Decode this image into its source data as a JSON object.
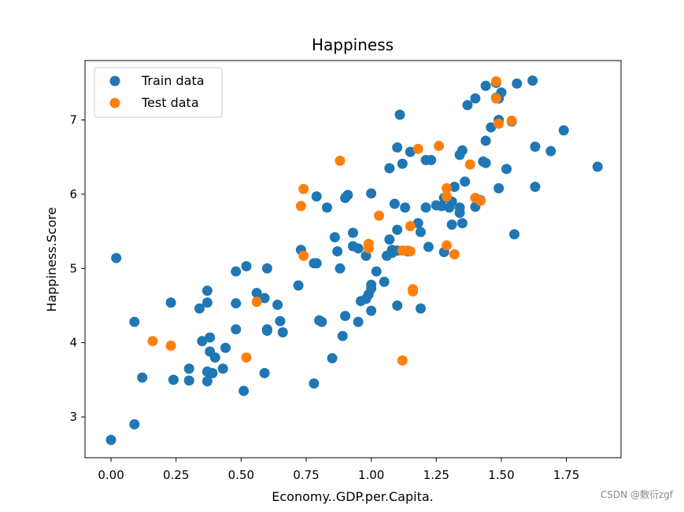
{
  "chart_data": {
    "type": "scatter",
    "title": "Happiness",
    "xlabel": "Economy..GDP.per.Capita.",
    "ylabel": "Happiness.Score",
    "xlim": [
      -0.1,
      1.96
    ],
    "ylim": [
      2.45,
      7.8
    ],
    "xticks": [
      0.0,
      0.25,
      0.5,
      0.75,
      1.0,
      1.25,
      1.5,
      1.75
    ],
    "xtick_labels": [
      "0.00",
      "0.25",
      "0.50",
      "0.75",
      "1.00",
      "1.25",
      "1.50",
      "1.75"
    ],
    "yticks": [
      3,
      4,
      5,
      6,
      7
    ],
    "ytick_labels": [
      "3",
      "4",
      "5",
      "6",
      "7"
    ],
    "grid": false,
    "legend_position": "top-left",
    "series": [
      {
        "name": "Train data",
        "color": "#1f77b4",
        "points": [
          [
            0.0,
            2.69
          ],
          [
            0.02,
            5.14
          ],
          [
            0.09,
            2.9
          ],
          [
            0.09,
            4.28
          ],
          [
            0.12,
            3.53
          ],
          [
            0.23,
            4.54
          ],
          [
            0.24,
            3.5
          ],
          [
            0.3,
            3.65
          ],
          [
            0.3,
            3.49
          ],
          [
            0.34,
            4.46
          ],
          [
            0.35,
            4.02
          ],
          [
            0.37,
            4.7
          ],
          [
            0.37,
            4.54
          ],
          [
            0.37,
            3.61
          ],
          [
            0.37,
            3.48
          ],
          [
            0.38,
            3.88
          ],
          [
            0.38,
            4.07
          ],
          [
            0.39,
            3.59
          ],
          [
            0.4,
            3.8
          ],
          [
            0.43,
            3.65
          ],
          [
            0.44,
            3.93
          ],
          [
            0.48,
            4.96
          ],
          [
            0.48,
            4.53
          ],
          [
            0.48,
            4.18
          ],
          [
            0.51,
            3.35
          ],
          [
            0.52,
            5.03
          ],
          [
            0.56,
            4.67
          ],
          [
            0.59,
            4.6
          ],
          [
            0.59,
            3.59
          ],
          [
            0.6,
            5.0
          ],
          [
            0.6,
            4.18
          ],
          [
            0.6,
            4.16
          ],
          [
            0.64,
            4.51
          ],
          [
            0.65,
            4.29
          ],
          [
            0.66,
            4.14
          ],
          [
            0.72,
            4.77
          ],
          [
            0.73,
            5.25
          ],
          [
            0.78,
            3.45
          ],
          [
            0.78,
            5.07
          ],
          [
            0.79,
            5.97
          ],
          [
            0.79,
            5.07
          ],
          [
            0.8,
            4.3
          ],
          [
            0.81,
            4.28
          ],
          [
            0.83,
            5.82
          ],
          [
            0.85,
            3.79
          ],
          [
            0.86,
            5.42
          ],
          [
            0.87,
            5.23
          ],
          [
            0.88,
            5.0
          ],
          [
            0.89,
            4.09
          ],
          [
            0.9,
            4.36
          ],
          [
            0.9,
            5.95
          ],
          [
            0.91,
            5.99
          ],
          [
            0.93,
            5.3
          ],
          [
            0.93,
            5.48
          ],
          [
            0.95,
            5.27
          ],
          [
            0.95,
            4.28
          ],
          [
            0.96,
            4.56
          ],
          [
            0.98,
            4.59
          ],
          [
            0.98,
            5.17
          ],
          [
            0.99,
            4.65
          ],
          [
            1.0,
            4.73
          ],
          [
            1.0,
            4.78
          ],
          [
            1.0,
            4.43
          ],
          [
            1.0,
            6.01
          ],
          [
            1.02,
            4.96
          ],
          [
            1.05,
            4.82
          ],
          [
            1.06,
            5.17
          ],
          [
            1.07,
            5.39
          ],
          [
            1.07,
            6.35
          ],
          [
            1.08,
            5.21
          ],
          [
            1.08,
            5.25
          ],
          [
            1.09,
            5.87
          ],
          [
            1.1,
            4.5
          ],
          [
            1.1,
            5.52
          ],
          [
            1.1,
            5.24
          ],
          [
            1.1,
            6.63
          ],
          [
            1.11,
            7.07
          ],
          [
            1.12,
            6.41
          ],
          [
            1.13,
            5.82
          ],
          [
            1.14,
            5.23
          ],
          [
            1.15,
            6.57
          ],
          [
            1.18,
            5.61
          ],
          [
            1.19,
            5.49
          ],
          [
            1.19,
            4.46
          ],
          [
            1.21,
            6.46
          ],
          [
            1.21,
            5.82
          ],
          [
            1.22,
            5.29
          ],
          [
            1.23,
            6.46
          ],
          [
            1.25,
            5.85
          ],
          [
            1.27,
            5.84
          ],
          [
            1.28,
            5.95
          ],
          [
            1.28,
            5.22
          ],
          [
            1.3,
            5.82
          ],
          [
            1.31,
            5.59
          ],
          [
            1.31,
            5.9
          ],
          [
            1.32,
            6.1
          ],
          [
            1.34,
            6.53
          ],
          [
            1.34,
            5.75
          ],
          [
            1.34,
            5.82
          ],
          [
            1.35,
            5.61
          ],
          [
            1.35,
            6.59
          ],
          [
            1.36,
            6.17
          ],
          [
            1.37,
            7.2
          ],
          [
            1.4,
            5.83
          ],
          [
            1.4,
            7.29
          ],
          [
            1.42,
            5.92
          ],
          [
            1.43,
            6.44
          ],
          [
            1.44,
            6.42
          ],
          [
            1.44,
            7.46
          ],
          [
            1.44,
            6.72
          ],
          [
            1.46,
            6.9
          ],
          [
            1.48,
            7.3
          ],
          [
            1.48,
            7.5
          ],
          [
            1.49,
            7.0
          ],
          [
            1.49,
            6.08
          ],
          [
            1.49,
            7.29
          ],
          [
            1.5,
            7.37
          ],
          [
            1.52,
            6.34
          ],
          [
            1.54,
            6.98
          ],
          [
            1.55,
            5.46
          ],
          [
            1.56,
            7.49
          ],
          [
            1.62,
            7.53
          ],
          [
            1.63,
            6.64
          ],
          [
            1.63,
            6.1
          ],
          [
            1.69,
            6.58
          ],
          [
            1.74,
            6.86
          ],
          [
            1.87,
            6.37
          ]
        ]
      },
      {
        "name": "Test data",
        "color": "#ff7f0e",
        "points": [
          [
            0.16,
            4.02
          ],
          [
            0.23,
            3.96
          ],
          [
            0.52,
            3.8
          ],
          [
            0.56,
            4.55
          ],
          [
            0.73,
            5.84
          ],
          [
            0.74,
            6.07
          ],
          [
            0.74,
            5.17
          ],
          [
            0.88,
            6.45
          ],
          [
            0.99,
            5.33
          ],
          [
            0.99,
            5.27
          ],
          [
            1.03,
            5.71
          ],
          [
            1.12,
            5.24
          ],
          [
            1.12,
            3.76
          ],
          [
            1.14,
            5.24
          ],
          [
            1.15,
            5.57
          ],
          [
            1.15,
            5.23
          ],
          [
            1.16,
            4.72
          ],
          [
            1.16,
            4.69
          ],
          [
            1.18,
            6.61
          ],
          [
            1.26,
            6.65
          ],
          [
            1.29,
            5.31
          ],
          [
            1.29,
            6.08
          ],
          [
            1.29,
            5.97
          ],
          [
            1.32,
            5.19
          ],
          [
            1.38,
            6.4
          ],
          [
            1.4,
            5.95
          ],
          [
            1.42,
            5.91
          ],
          [
            1.48,
            7.29
          ],
          [
            1.48,
            7.52
          ],
          [
            1.49,
            6.95
          ],
          [
            1.54,
            6.99
          ]
        ]
      }
    ]
  },
  "watermark": "CSDN @敷衍zgf"
}
